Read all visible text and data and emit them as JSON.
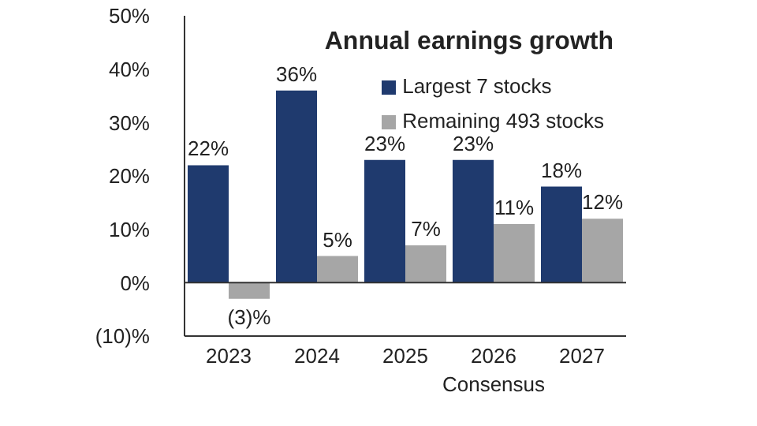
{
  "chart_data": {
    "type": "bar",
    "title": "Annual earnings growth",
    "categories": [
      "2023",
      "2024",
      "2025",
      "2026",
      "2027"
    ],
    "series": [
      {
        "name": "Largest 7 stocks",
        "color": "#1f3a6e",
        "values": [
          22,
          36,
          23,
          23,
          18
        ],
        "value_labels": [
          "22%",
          "36%",
          "23%",
          "23%",
          "18%"
        ]
      },
      {
        "name": "Remaining 493 stocks",
        "color": "#a6a6a6",
        "values": [
          -3,
          5,
          7,
          11,
          12
        ],
        "value_labels": [
          "(3)%",
          "5%",
          "7%",
          "11%",
          "12%"
        ]
      }
    ],
    "ylim": [
      -10,
      50
    ],
    "yticks": [
      {
        "value": -10,
        "label": "(10)%"
      },
      {
        "value": 0,
        "label": "0%"
      },
      {
        "value": 10,
        "label": "10%"
      },
      {
        "value": 20,
        "label": "20%"
      },
      {
        "value": 30,
        "label": "30%"
      },
      {
        "value": 40,
        "label": "40%"
      },
      {
        "value": 50,
        "label": "50%"
      }
    ],
    "legend": "top right",
    "ref_lines": [
      {
        "axis": "y",
        "value": 0,
        "color": "#333333"
      }
    ],
    "annotations": [
      "Consensus"
    ]
  }
}
